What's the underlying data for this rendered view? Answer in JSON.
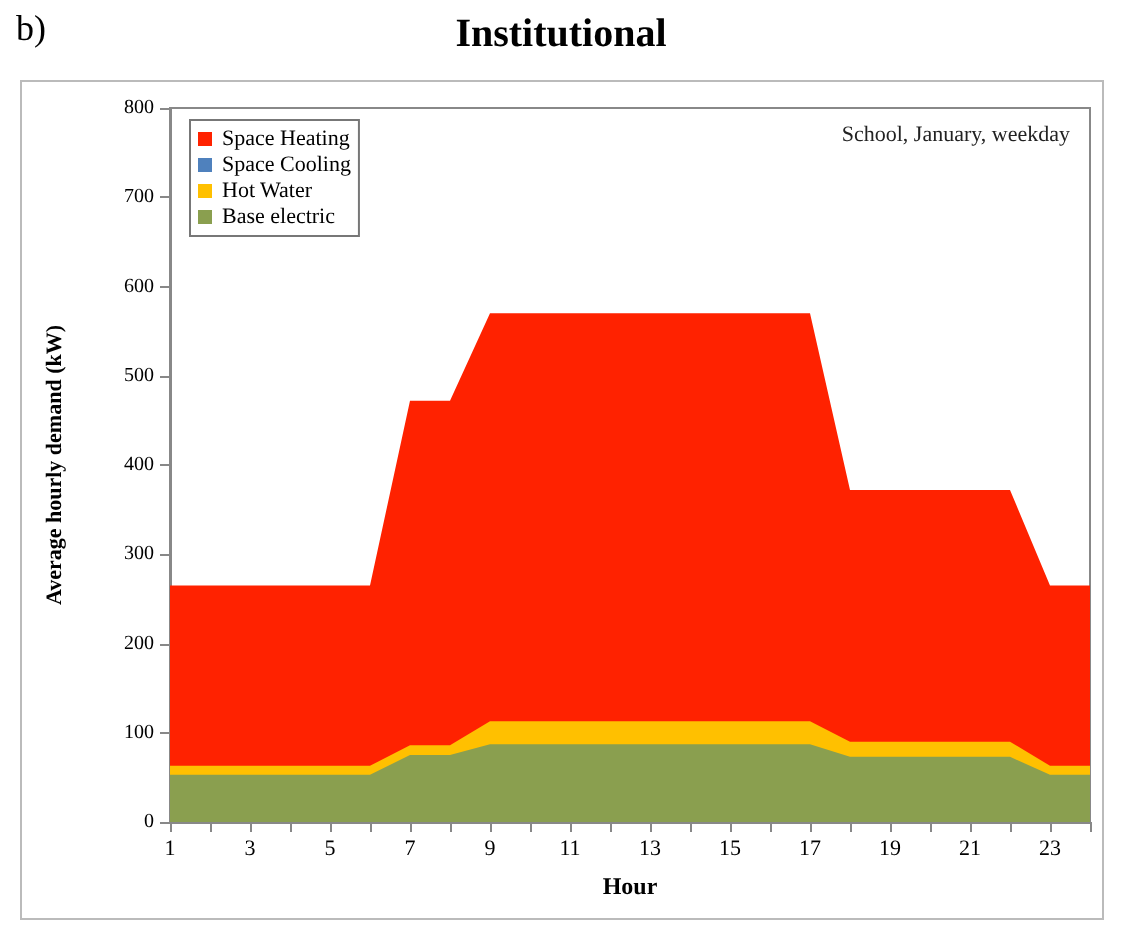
{
  "chart_data": {
    "type": "area",
    "title": "Institutional",
    "xlabel": "Hour",
    "ylabel": "Average hourly demand (kW)",
    "annotations": [
      "b)",
      "School, January, weekday"
    ],
    "x": [
      1,
      2,
      3,
      4,
      5,
      6,
      7,
      8,
      9,
      10,
      11,
      12,
      13,
      14,
      15,
      16,
      17,
      18,
      19,
      20,
      21,
      22,
      23,
      24
    ],
    "xlim": [
      1,
      24
    ],
    "xticks": [
      1,
      {
        "value": 2,
        "label": null
      },
      3,
      {
        "value": 4,
        "label": null
      },
      5,
      {
        "value": 6,
        "label": null
      },
      7,
      {
        "value": 8,
        "label": null
      },
      9,
      {
        "value": 10,
        "label": null
      },
      11,
      {
        "value": 12,
        "label": null
      },
      13,
      {
        "value": 14,
        "label": null
      },
      15,
      {
        "value": 16,
        "label": null
      },
      17,
      {
        "value": 18,
        "label": null
      },
      19,
      {
        "value": 20,
        "label": null
      },
      21,
      {
        "value": 22,
        "label": null
      },
      23,
      {
        "value": 24,
        "label": null
      }
    ],
    "stacked": true,
    "legend": "top left",
    "grid": false,
    "ylim": [
      0,
      800
    ],
    "yticks": [
      0,
      100,
      200,
      300,
      400,
      500,
      600,
      700,
      800
    ],
    "series": [
      {
        "name": "Base electric",
        "color": "#8a9f4f",
        "values": [
          53,
          53,
          53,
          53,
          53,
          53,
          75,
          75,
          87,
          87,
          87,
          87,
          87,
          87,
          87,
          87,
          87,
          73,
          73,
          73,
          73,
          73,
          53,
          53
        ]
      },
      {
        "name": "Hot Water",
        "color": "#ffc000",
        "values": [
          10,
          10,
          10,
          10,
          10,
          10,
          11,
          11,
          26,
          26,
          26,
          26,
          26,
          26,
          26,
          26,
          26,
          17,
          17,
          17,
          17,
          17,
          10,
          10
        ]
      },
      {
        "name": "Space Cooling",
        "color": "#4f81bd",
        "values": [
          null,
          null,
          null,
          null,
          null,
          null,
          null,
          null,
          null,
          null,
          null,
          null,
          null,
          null,
          null,
          null,
          null,
          null,
          null,
          null,
          null,
          null,
          null,
          null
        ]
      },
      {
        "name": "Space Heating",
        "color": "#ff2200",
        "values": [
          202,
          202,
          202,
          202,
          202,
          202,
          386,
          386,
          457,
          457,
          457,
          457,
          457,
          457,
          457,
          457,
          457,
          282,
          282,
          282,
          282,
          282,
          202,
          202
        ]
      }
    ]
  }
}
